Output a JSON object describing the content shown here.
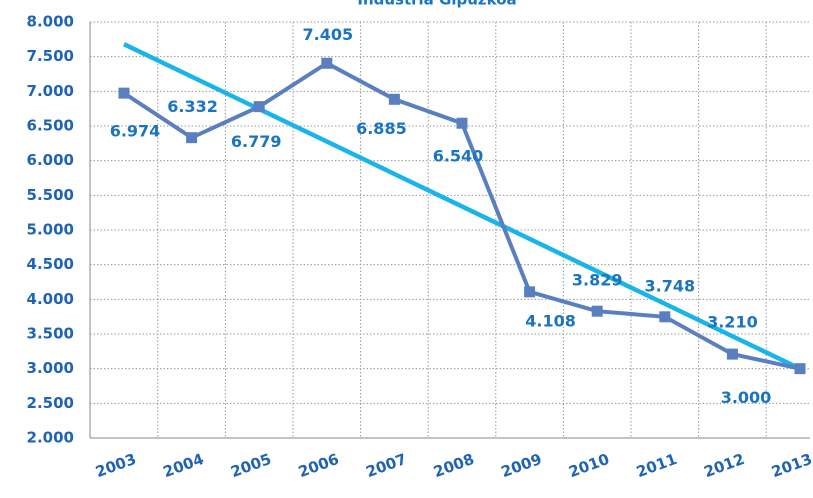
{
  "chart_data": {
    "type": "line",
    "title": "Industria Gipuzkoa",
    "categories": [
      "2003",
      "2004",
      "2005",
      "2006",
      "2007",
      "2008",
      "2009",
      "2010",
      "2011",
      "2012",
      "2013"
    ],
    "series": [
      {
        "color": "#5a7fc0",
        "values": [
          6974,
          6332,
          6779,
          7405,
          6885,
          6540,
          4108,
          3829,
          3748,
          3210,
          3000
        ],
        "value_labels": [
          "6.974",
          "6.332",
          "6.779",
          "7.405",
          "6.885",
          "6.540",
          "4.108",
          "3.829",
          "3.748",
          "3.210",
          "3.000"
        ]
      },
      {
        "color": "#19b4e8",
        "values": [
          7680,
          7212,
          6744,
          6276,
          5808,
          5340,
          4872,
          4404,
          3936,
          3468,
          3000
        ]
      }
    ],
    "ylim": [
      2000,
      8000
    ],
    "yticks": [
      {
        "value": 2000,
        "label": "2.000"
      },
      {
        "value": 2500,
        "label": "2.500"
      },
      {
        "value": 3000,
        "label": "3.000"
      },
      {
        "value": 3500,
        "label": "3.500"
      },
      {
        "value": 4000,
        "label": "4.000"
      },
      {
        "value": 4500,
        "label": "4.500"
      },
      {
        "value": 5000,
        "label": "5.000"
      },
      {
        "value": 5500,
        "label": "5.500"
      },
      {
        "value": 6000,
        "label": "6.000"
      },
      {
        "value": 6500,
        "label": "6.500"
      },
      {
        "value": 7000,
        "label": "7.000"
      },
      {
        "value": 7500,
        "label": "7.500"
      },
      {
        "value": 8000,
        "label": "8.000"
      }
    ],
    "grid": true
  }
}
